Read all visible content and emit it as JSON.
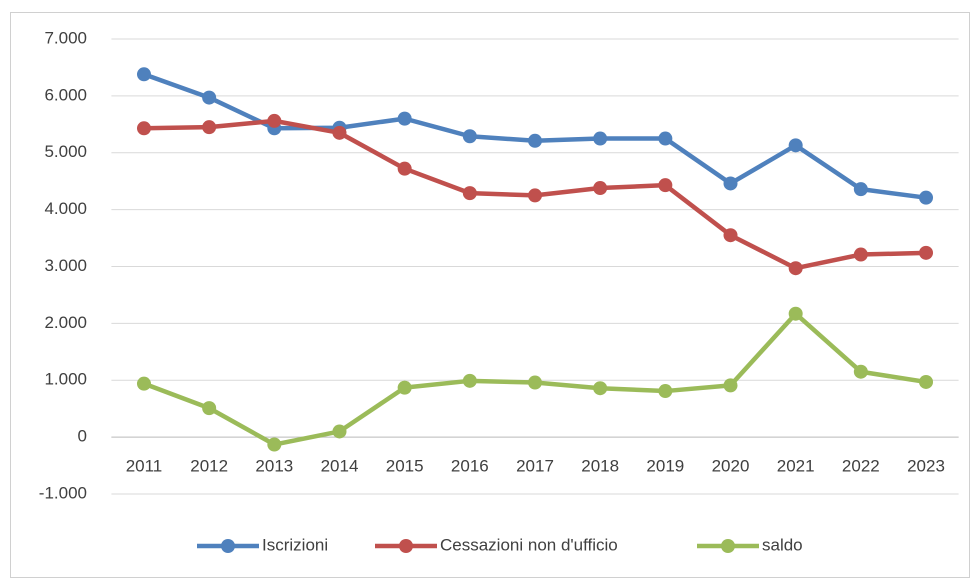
{
  "chart_data": {
    "type": "line",
    "categories": [
      "2011",
      "2012",
      "2013",
      "2014",
      "2015",
      "2016",
      "2017",
      "2018",
      "2019",
      "2020",
      "2021",
      "2022",
      "2023"
    ],
    "series": [
      {
        "name": "Iscrizioni",
        "color": "#4f81bd",
        "values": [
          6380,
          5970,
          5430,
          5440,
          5600,
          5290,
          5210,
          5250,
          5250,
          4460,
          5130,
          4360,
          4210
        ]
      },
      {
        "name": "Cessazioni non d'ufficio",
        "color": "#c0504d",
        "values": [
          5430,
          5450,
          5560,
          5350,
          4720,
          4290,
          4250,
          4380,
          4430,
          3550,
          2970,
          3210,
          3240
        ]
      },
      {
        "name": "saldo",
        "color": "#9bbb59",
        "values": [
          940,
          510,
          -130,
          100,
          870,
          990,
          960,
          860,
          810,
          910,
          2170,
          1150,
          970
        ]
      }
    ],
    "ylim": [
      -1000,
      7000
    ],
    "yticks": [
      {
        "value": -1000,
        "label": "-1.000"
      },
      0,
      {
        "value": 1000,
        "label": "1.000"
      },
      {
        "value": 2000,
        "label": "2.000"
      },
      {
        "value": 3000,
        "label": "3.000"
      },
      {
        "value": 4000,
        "label": "4.000"
      },
      {
        "value": 5000,
        "label": "5.000"
      },
      {
        "value": 6000,
        "label": "6.000"
      },
      {
        "value": 7000,
        "label": "7.000"
      }
    ],
    "grid": true,
    "legend": "bottom"
  }
}
